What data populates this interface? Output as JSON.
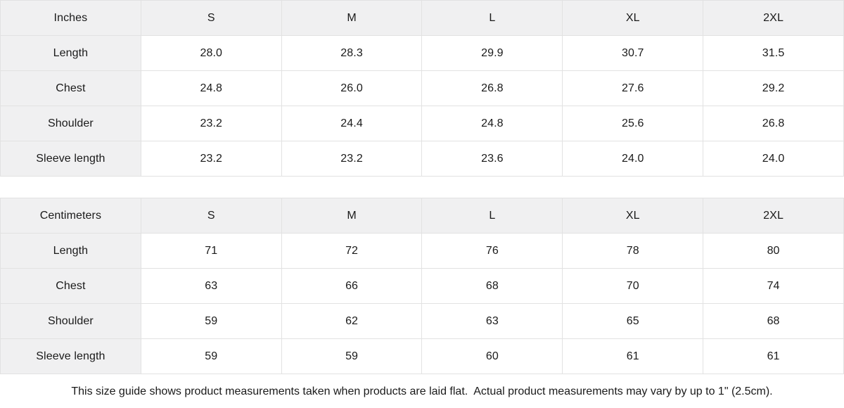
{
  "tables": [
    {
      "unit_label": "Inches",
      "sizes": [
        "S",
        "M",
        "L",
        "XL",
        "2XL"
      ],
      "rows": [
        {
          "label": "Length",
          "values": [
            "28.0",
            "28.3",
            "29.9",
            "30.7",
            "31.5"
          ]
        },
        {
          "label": "Chest",
          "values": [
            "24.8",
            "26.0",
            "26.8",
            "27.6",
            "29.2"
          ]
        },
        {
          "label": "Shoulder",
          "values": [
            "23.2",
            "24.4",
            "24.8",
            "25.6",
            "26.8"
          ]
        },
        {
          "label": "Sleeve length",
          "values": [
            "23.2",
            "23.2",
            "23.6",
            "24.0",
            "24.0"
          ]
        }
      ]
    },
    {
      "unit_label": "Centimeters",
      "sizes": [
        "S",
        "M",
        "L",
        "XL",
        "2XL"
      ],
      "rows": [
        {
          "label": "Length",
          "values": [
            "71",
            "72",
            "76",
            "78",
            "80"
          ]
        },
        {
          "label": "Chest",
          "values": [
            "63",
            "66",
            "68",
            "70",
            "74"
          ]
        },
        {
          "label": "Shoulder",
          "values": [
            "59",
            "62",
            "63",
            "65",
            "68"
          ]
        },
        {
          "label": "Sleeve length",
          "values": [
            "59",
            "59",
            "60",
            "61",
            "61"
          ]
        }
      ]
    }
  ],
  "note": "This size guide shows product measurements taken when products are laid flat.  Actual product measurements may vary by up to 1\" (2.5cm).",
  "colors": {
    "label_cell_bg": "#f0f0f1",
    "grid_border": "#e2e2e2",
    "text": "#1a1a1a",
    "background": "#ffffff"
  }
}
